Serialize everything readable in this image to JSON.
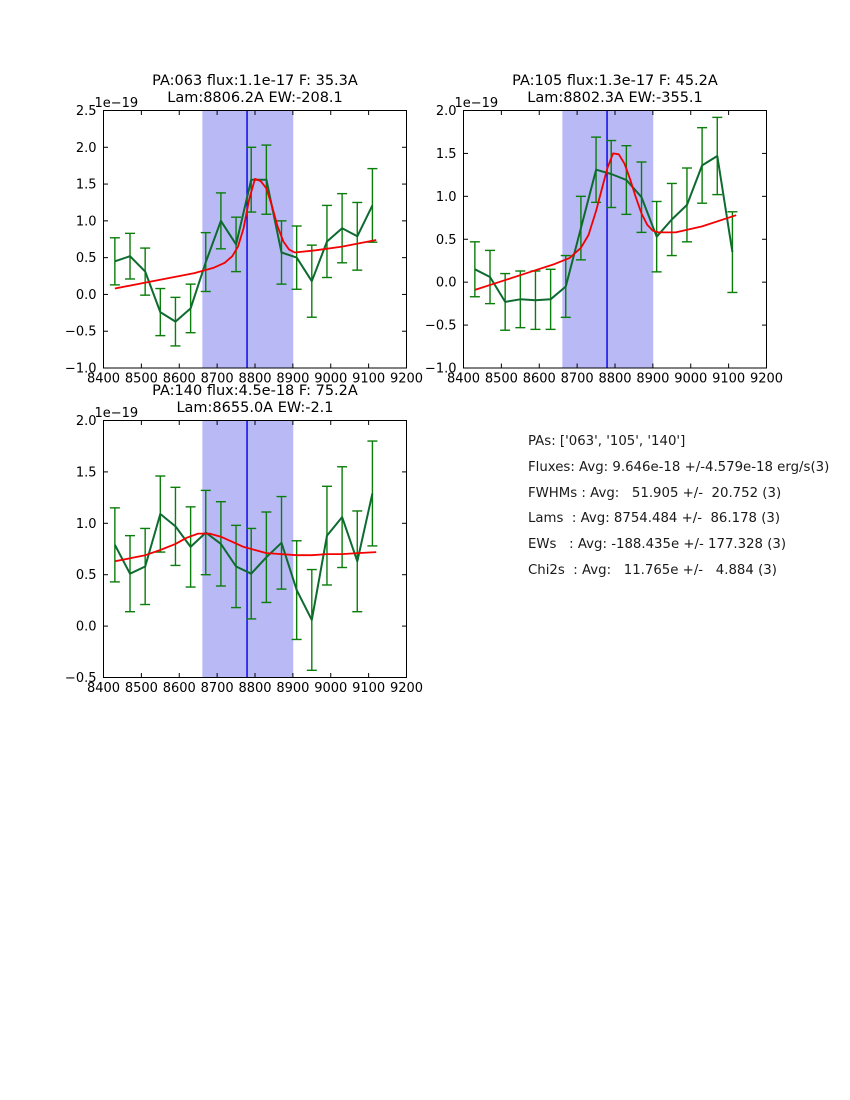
{
  "colors": {
    "background": "#ffffff",
    "data_line": "#0d6b2f",
    "error_bar": "#0a7d0a",
    "fit_line": "#f40000",
    "center_line": "#0000ee",
    "band_fill": "#b9b9f6",
    "axis": "#000000"
  },
  "stats_panel": {
    "lines": [
      "PAs: ['063', '105', '140']",
      "Fluxes: Avg: 9.646e-18 +/-4.579e-18 erg/s(3)",
      "FWHMs : Avg:   51.905 +/-  20.752 (3)",
      "Lams  : Avg: 8754.484 +/-  86.178 (3)",
      "EWs   : Avg: -188.435e +/- 177.328 (3)",
      "Chi2s  : Avg:   11.765e +/-   4.884 (3)"
    ]
  },
  "chart_data": [
    {
      "type": "line",
      "id": "pa063",
      "title_line1": "PA:063 flux:1.1e-17 F: 35.3A",
      "title_line2": "Lam:8806.2A EW:-208.1",
      "offset_label": "1e−19",
      "xlim": [
        8400,
        9200
      ],
      "ylim": [
        -1.0,
        2.5
      ],
      "x_ticks": [
        8400,
        8500,
        8600,
        8700,
        8800,
        8900,
        9000,
        9100,
        9200
      ],
      "x_tick_labels": [
        "8400",
        "8500",
        "8600",
        "8700",
        "8800",
        "8900",
        "9000",
        "9100",
        "9200"
      ],
      "y_ticks": [
        2.5,
        2.0,
        1.5,
        1.0,
        0.5,
        0.0,
        -0.5,
        -1.0
      ],
      "y_tick_labels": [
        "2.5",
        "2.0",
        "1.5",
        "1.0",
        "0.5",
        "0.0",
        "−0.5",
        "−1.0"
      ],
      "band": [
        8661,
        8901
      ],
      "center_line_x": 8779,
      "x": [
        8430,
        8470,
        8510,
        8550,
        8590,
        8630,
        8670,
        8710,
        8750,
        8790,
        8830,
        8870,
        8910,
        8950,
        8990,
        9030,
        9070,
        9110
      ],
      "flux": [
        0.45,
        0.52,
        0.31,
        -0.24,
        -0.37,
        -0.19,
        0.44,
        1.0,
        0.68,
        1.56,
        1.56,
        0.57,
        0.5,
        0.18,
        0.72,
        0.9,
        0.79,
        1.21
      ],
      "flux_err": [
        0.32,
        0.31,
        0.32,
        0.32,
        0.33,
        0.33,
        0.4,
        0.38,
        0.37,
        0.44,
        0.47,
        0.43,
        0.43,
        0.49,
        0.49,
        0.47,
        0.46,
        0.5
      ],
      "fit_x": [
        8430,
        8500,
        8570,
        8640,
        8690,
        8720,
        8740,
        8755,
        8770,
        8785,
        8800,
        8815,
        8830,
        8845,
        8860,
        8875,
        8890,
        8905,
        8960,
        9030,
        9120
      ],
      "fit_y": [
        0.08,
        0.15,
        0.22,
        0.29,
        0.36,
        0.43,
        0.52,
        0.65,
        0.9,
        1.3,
        1.57,
        1.54,
        1.44,
        1.2,
        0.92,
        0.72,
        0.61,
        0.57,
        0.6,
        0.65,
        0.74
      ]
    },
    {
      "type": "line",
      "id": "pa105",
      "title_line1": "PA:105 flux:1.3e-17 F: 45.2A",
      "title_line2": "Lam:8802.3A EW:-355.1",
      "offset_label": "1e−19",
      "xlim": [
        8400,
        9200
      ],
      "ylim": [
        -1.0,
        2.0
      ],
      "x_ticks": [
        8400,
        8500,
        8600,
        8700,
        8800,
        8900,
        9000,
        9100,
        9200
      ],
      "x_tick_labels": [
        "8400",
        "8500",
        "8600",
        "8700",
        "8800",
        "8900",
        "9000",
        "9100",
        "9200"
      ],
      "y_ticks": [
        2.0,
        1.5,
        1.0,
        0.5,
        0.0,
        -0.5,
        -1.0
      ],
      "y_tick_labels": [
        "2.0",
        "1.5",
        "1.0",
        "0.5",
        "0.0",
        "−0.5",
        "−1.0"
      ],
      "band": [
        8661,
        8901
      ],
      "center_line_x": 8779,
      "x": [
        8430,
        8470,
        8510,
        8550,
        8590,
        8630,
        8670,
        8710,
        8750,
        8790,
        8830,
        8870,
        8910,
        8950,
        8990,
        9030,
        9070,
        9110
      ],
      "flux": [
        0.15,
        0.06,
        -0.23,
        -0.2,
        -0.21,
        -0.2,
        -0.05,
        0.63,
        1.31,
        1.26,
        1.19,
        0.99,
        0.53,
        0.73,
        0.9,
        1.36,
        1.47,
        0.35
      ],
      "flux_err": [
        0.32,
        0.31,
        0.33,
        0.33,
        0.34,
        0.35,
        0.36,
        0.37,
        0.38,
        0.39,
        0.4,
        0.41,
        0.41,
        0.42,
        0.43,
        0.44,
        0.45,
        0.47
      ],
      "fit_x": [
        8430,
        8500,
        8570,
        8640,
        8680,
        8710,
        8730,
        8750,
        8765,
        8780,
        8795,
        8810,
        8825,
        8840,
        8855,
        8870,
        8885,
        8900,
        8915,
        8960,
        9030,
        9120
      ],
      "fit_y": [
        -0.09,
        0.01,
        0.11,
        0.21,
        0.28,
        0.4,
        0.55,
        0.83,
        1.08,
        1.33,
        1.5,
        1.49,
        1.38,
        1.2,
        0.99,
        0.8,
        0.67,
        0.6,
        0.58,
        0.58,
        0.65,
        0.78
      ]
    },
    {
      "type": "line",
      "id": "pa140",
      "title_line1": "PA:140 flux:4.5e-18 F: 75.2A",
      "title_line2": "Lam:8655.0A EW:-2.1",
      "offset_label": "1e−19",
      "xlim": [
        8400,
        9200
      ],
      "ylim": [
        -0.5,
        2.0
      ],
      "x_ticks": [
        8400,
        8500,
        8600,
        8700,
        8800,
        8900,
        9000,
        9100,
        9200
      ],
      "x_tick_labels": [
        "8400",
        "8500",
        "8600",
        "8700",
        "8800",
        "8900",
        "9000",
        "9100",
        "9200"
      ],
      "y_ticks": [
        2.0,
        1.5,
        1.0,
        0.5,
        0.0,
        -0.5
      ],
      "y_tick_labels": [
        "2.0",
        "1.5",
        "1.0",
        "0.5",
        "0.0",
        "−0.5"
      ],
      "band": [
        8661,
        8901
      ],
      "center_line_x": 8779,
      "x": [
        8430,
        8470,
        8510,
        8550,
        8590,
        8630,
        8670,
        8710,
        8750,
        8790,
        8830,
        8870,
        8910,
        8950,
        8990,
        9030,
        9070,
        9110
      ],
      "flux": [
        0.79,
        0.51,
        0.58,
        1.09,
        0.97,
        0.77,
        0.91,
        0.8,
        0.58,
        0.51,
        0.67,
        0.81,
        0.35,
        0.06,
        0.88,
        1.06,
        0.63,
        1.29
      ],
      "flux_err": [
        0.36,
        0.37,
        0.37,
        0.37,
        0.38,
        0.39,
        0.41,
        0.41,
        0.4,
        0.44,
        0.44,
        0.45,
        0.48,
        0.49,
        0.48,
        0.49,
        0.49,
        0.51
      ],
      "fit_x": [
        8430,
        8470,
        8510,
        8550,
        8590,
        8620,
        8650,
        8680,
        8710,
        8740,
        8770,
        8800,
        8830,
        8870,
        8910,
        8950,
        8990,
        9030,
        9070,
        9120
      ],
      "fit_y": [
        0.63,
        0.66,
        0.69,
        0.74,
        0.8,
        0.86,
        0.9,
        0.9,
        0.87,
        0.82,
        0.77,
        0.74,
        0.71,
        0.7,
        0.69,
        0.69,
        0.7,
        0.7,
        0.71,
        0.72
      ]
    }
  ]
}
